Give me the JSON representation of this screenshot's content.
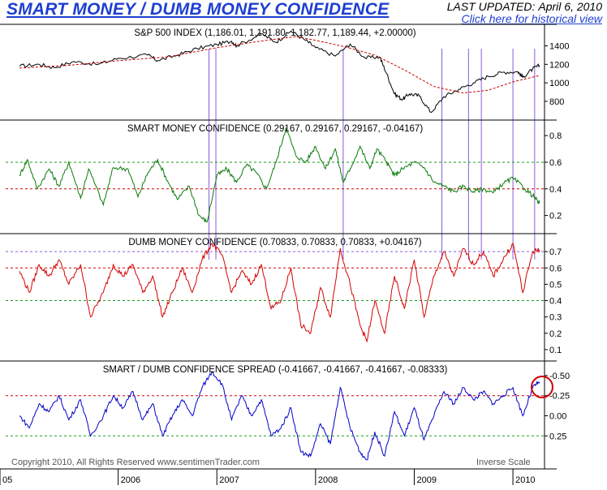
{
  "header": {
    "title": "SMART MONEY / DUMB MONEY CONFIDENCE",
    "updated_label": "LAST UPDATED:",
    "updated_date": "April 6, 2010",
    "link_text": "Click here for historical view"
  },
  "colors": {
    "title": "#1e3fd0",
    "sp500": "#000000",
    "moving_average": "#cc0000",
    "smart_money": "#0a7a0a",
    "dumb_money": "#d40000",
    "spread": "#0000c8",
    "marker_lines": "#8a5cd6",
    "ref_green": "#1b9a1b",
    "ref_red": "#d40000",
    "circle": "#cc0000"
  },
  "footer": {
    "copyright": "Copyright 2010, All Rights Reserved  www.sentimenTrader.com",
    "inverse_scale": "Inverse Scale"
  },
  "chart_data": {
    "type": "line",
    "x_labels": [
      "05",
      "2006",
      "2007",
      "2008",
      "2009",
      "2010"
    ],
    "panels": [
      {
        "title": "S&P 500 INDEX (1,186.01, 1,191.80, 1,182.77, 1,189.44, +2.00000)",
        "yticks": [
          "1400",
          "1200",
          "1000",
          "800"
        ],
        "series": [
          {
            "type": "price",
            "points": [
              [
                2005.0,
                1180
              ],
              [
                2005.2,
                1200
              ],
              [
                2005.35,
                1165
              ],
              [
                2005.55,
                1230
              ],
              [
                2005.8,
                1200
              ],
              [
                2006.0,
                1265
              ],
              [
                2006.3,
                1300
              ],
              [
                2006.4,
                1240
              ],
              [
                2006.6,
                1300
              ],
              [
                2006.8,
                1370
              ],
              [
                2007.0,
                1415
              ],
              [
                2007.15,
                1450
              ],
              [
                2007.2,
                1400
              ],
              [
                2007.45,
                1530
              ],
              [
                2007.6,
                1440
              ],
              [
                2007.75,
                1560
              ],
              [
                2007.9,
                1460
              ],
              [
                2008.0,
                1380
              ],
              [
                2008.2,
                1290
              ],
              [
                2008.35,
                1420
              ],
              [
                2008.5,
                1270
              ],
              [
                2008.65,
                1280
              ],
              [
                2008.72,
                1100
              ],
              [
                2008.8,
                880
              ],
              [
                2008.88,
                820
              ],
              [
                2008.95,
                880
              ],
              [
                2009.05,
                860
              ],
              [
                2009.17,
                680
              ],
              [
                2009.3,
                850
              ],
              [
                2009.45,
                930
              ],
              [
                2009.6,
                1000
              ],
              [
                2009.75,
                1070
              ],
              [
                2009.9,
                1115
              ],
              [
                2010.05,
                1120
              ],
              [
                2010.1,
                1060
              ],
              [
                2010.2,
                1150
              ],
              [
                2010.27,
                1189
              ]
            ]
          },
          {
            "type": "moving_average",
            "points": [
              [
                2005.0,
                1160
              ],
              [
                2005.5,
                1190
              ],
              [
                2006.0,
                1240
              ],
              [
                2006.5,
                1280
              ],
              [
                2007.0,
                1380
              ],
              [
                2007.5,
                1460
              ],
              [
                2007.8,
                1500
              ],
              [
                2008.0,
                1460
              ],
              [
                2008.3,
                1390
              ],
              [
                2008.6,
                1300
              ],
              [
                2008.9,
                1140
              ],
              [
                2009.2,
                960
              ],
              [
                2009.5,
                890
              ],
              [
                2009.75,
                920
              ],
              [
                2010.0,
                1010
              ],
              [
                2010.27,
                1080
              ]
            ]
          }
        ]
      },
      {
        "title": "SMART MONEY CONFIDENCE (0.29167, 0.29167, 0.29167, -0.04167)",
        "yticks": [
          "0.8",
          "0.6",
          "0.4",
          "0.2"
        ],
        "reference_lines": [
          0.6,
          0.4
        ],
        "series": [
          {
            "points": [
              [
                2005.0,
                0.5
              ],
              [
                2005.08,
                0.62
              ],
              [
                2005.18,
                0.4
              ],
              [
                2005.3,
                0.55
              ],
              [
                2005.4,
                0.42
              ],
              [
                2005.5,
                0.6
              ],
              [
                2005.62,
                0.33
              ],
              [
                2005.7,
                0.55
              ],
              [
                2005.85,
                0.28
              ],
              [
                2005.95,
                0.56
              ],
              [
                2006.1,
                0.55
              ],
              [
                2006.2,
                0.34
              ],
              [
                2006.3,
                0.52
              ],
              [
                2006.4,
                0.62
              ],
              [
                2006.5,
                0.46
              ],
              [
                2006.6,
                0.32
              ],
              [
                2006.72,
                0.42
              ],
              [
                2006.82,
                0.2
              ],
              [
                2006.9,
                0.15
              ],
              [
                2007.0,
                0.5
              ],
              [
                2007.1,
                0.55
              ],
              [
                2007.2,
                0.45
              ],
              [
                2007.3,
                0.58
              ],
              [
                2007.4,
                0.52
              ],
              [
                2007.5,
                0.4
              ],
              [
                2007.6,
                0.6
              ],
              [
                2007.7,
                0.86
              ],
              [
                2007.8,
                0.65
              ],
              [
                2007.9,
                0.6
              ],
              [
                2008.0,
                0.72
              ],
              [
                2008.1,
                0.55
              ],
              [
                2008.2,
                0.7
              ],
              [
                2008.28,
                0.45
              ],
              [
                2008.35,
                0.55
              ],
              [
                2008.45,
                0.72
              ],
              [
                2008.55,
                0.55
              ],
              [
                2008.62,
                0.7
              ],
              [
                2008.72,
                0.6
              ],
              [
                2008.8,
                0.5
              ],
              [
                2008.88,
                0.55
              ],
              [
                2009.0,
                0.6
              ],
              [
                2009.1,
                0.56
              ],
              [
                2009.2,
                0.45
              ],
              [
                2009.3,
                0.42
              ],
              [
                2009.4,
                0.38
              ],
              [
                2009.5,
                0.42
              ],
              [
                2009.6,
                0.38
              ],
              [
                2009.7,
                0.4
              ],
              [
                2009.8,
                0.37
              ],
              [
                2009.9,
                0.44
              ],
              [
                2010.0,
                0.48
              ],
              [
                2010.12,
                0.4
              ],
              [
                2010.2,
                0.35
              ],
              [
                2010.27,
                0.29
              ]
            ]
          }
        ]
      },
      {
        "title": "DUMB MONEY CONFIDENCE (0.70833, 0.70833, 0.70833, +0.04167)",
        "yticks": [
          "0.7",
          "0.6",
          "0.5",
          "0.4",
          "0.3",
          "0.2",
          "0.1"
        ],
        "reference_lines": [
          0.7,
          0.6,
          0.4
        ],
        "series": [
          {
            "points": [
              [
                2005.0,
                0.58
              ],
              [
                2005.1,
                0.45
              ],
              [
                2005.2,
                0.62
              ],
              [
                2005.3,
                0.55
              ],
              [
                2005.4,
                0.65
              ],
              [
                2005.5,
                0.5
              ],
              [
                2005.62,
                0.62
              ],
              [
                2005.72,
                0.3
              ],
              [
                2005.85,
                0.45
              ],
              [
                2005.95,
                0.62
              ],
              [
                2006.05,
                0.55
              ],
              [
                2006.15,
                0.62
              ],
              [
                2006.25,
                0.45
              ],
              [
                2006.35,
                0.55
              ],
              [
                2006.45,
                0.3
              ],
              [
                2006.55,
                0.45
              ],
              [
                2006.65,
                0.6
              ],
              [
                2006.75,
                0.45
              ],
              [
                2006.85,
                0.65
              ],
              [
                2006.95,
                0.75
              ],
              [
                2007.05,
                0.68
              ],
              [
                2007.15,
                0.45
              ],
              [
                2007.25,
                0.58
              ],
              [
                2007.35,
                0.5
              ],
              [
                2007.45,
                0.62
              ],
              [
                2007.55,
                0.35
              ],
              [
                2007.65,
                0.4
              ],
              [
                2007.75,
                0.6
              ],
              [
                2007.85,
                0.25
              ],
              [
                2007.95,
                0.2
              ],
              [
                2008.05,
                0.48
              ],
              [
                2008.15,
                0.3
              ],
              [
                2008.25,
                0.72
              ],
              [
                2008.35,
                0.5
              ],
              [
                2008.45,
                0.25
              ],
              [
                2008.52,
                0.15
              ],
              [
                2008.6,
                0.4
              ],
              [
                2008.7,
                0.2
              ],
              [
                2008.8,
                0.55
              ],
              [
                2008.9,
                0.35
              ],
              [
                2009.0,
                0.65
              ],
              [
                2009.1,
                0.3
              ],
              [
                2009.2,
                0.55
              ],
              [
                2009.3,
                0.7
              ],
              [
                2009.4,
                0.55
              ],
              [
                2009.5,
                0.72
              ],
              [
                2009.6,
                0.62
              ],
              [
                2009.7,
                0.7
              ],
              [
                2009.8,
                0.55
              ],
              [
                2009.9,
                0.65
              ],
              [
                2010.0,
                0.75
              ],
              [
                2010.1,
                0.45
              ],
              [
                2010.2,
                0.7
              ],
              [
                2010.27,
                0.71
              ]
            ]
          }
        ]
      },
      {
        "title": "SMART / DUMB CONFIDENCE SPREAD (-0.41667, -0.41667, -0.41667, -0.08333)",
        "yticks": [
          "-0.50",
          "-0.25",
          "0.00",
          "0.25"
        ],
        "reference_lines": [
          -0.25,
          0.25
        ],
        "series": [
          {
            "points": [
              [
                2005.0,
                0.0
              ],
              [
                2005.1,
                0.15
              ],
              [
                2005.2,
                -0.15
              ],
              [
                2005.3,
                -0.05
              ],
              [
                2005.4,
                -0.25
              ],
              [
                2005.5,
                0.05
              ],
              [
                2005.62,
                -0.2
              ],
              [
                2005.72,
                0.25
              ],
              [
                2005.85,
                0.0
              ],
              [
                2005.95,
                -0.25
              ],
              [
                2006.05,
                -0.1
              ],
              [
                2006.15,
                -0.3
              ],
              [
                2006.25,
                0.05
              ],
              [
                2006.35,
                -0.15
              ],
              [
                2006.45,
                0.25
              ],
              [
                2006.55,
                0.0
              ],
              [
                2006.65,
                -0.2
              ],
              [
                2006.75,
                0.0
              ],
              [
                2006.85,
                -0.35
              ],
              [
                2006.95,
                -0.55
              ],
              [
                2007.05,
                -0.4
              ],
              [
                2007.15,
                0.05
              ],
              [
                2007.25,
                -0.25
              ],
              [
                2007.35,
                0.0
              ],
              [
                2007.45,
                -0.2
              ],
              [
                2007.55,
                0.25
              ],
              [
                2007.65,
                0.15
              ],
              [
                2007.75,
                -0.1
              ],
              [
                2007.85,
                0.45
              ],
              [
                2007.95,
                0.5
              ],
              [
                2008.05,
                0.1
              ],
              [
                2008.15,
                0.35
              ],
              [
                2008.25,
                -0.35
              ],
              [
                2008.35,
                0.15
              ],
              [
                2008.45,
                0.45
              ],
              [
                2008.52,
                0.55
              ],
              [
                2008.6,
                0.2
              ],
              [
                2008.7,
                0.5
              ],
              [
                2008.8,
                -0.05
              ],
              [
                2008.9,
                0.25
              ],
              [
                2009.0,
                -0.1
              ],
              [
                2009.1,
                0.3
              ],
              [
                2009.2,
                0.0
              ],
              [
                2009.3,
                -0.3
              ],
              [
                2009.4,
                -0.15
              ],
              [
                2009.5,
                -0.35
              ],
              [
                2009.6,
                -0.2
              ],
              [
                2009.7,
                -0.3
              ],
              [
                2009.8,
                -0.15
              ],
              [
                2009.9,
                -0.25
              ],
              [
                2010.0,
                -0.35
              ],
              [
                2010.1,
                0.0
              ],
              [
                2010.2,
                -0.35
              ],
              [
                2010.27,
                -0.42
              ]
            ]
          }
        ]
      }
    ],
    "marker_dates": [
      2006.92,
      2006.99,
      2008.28,
      2009.28,
      2009.55,
      2009.68,
      2010.0,
      2010.22
    ]
  }
}
